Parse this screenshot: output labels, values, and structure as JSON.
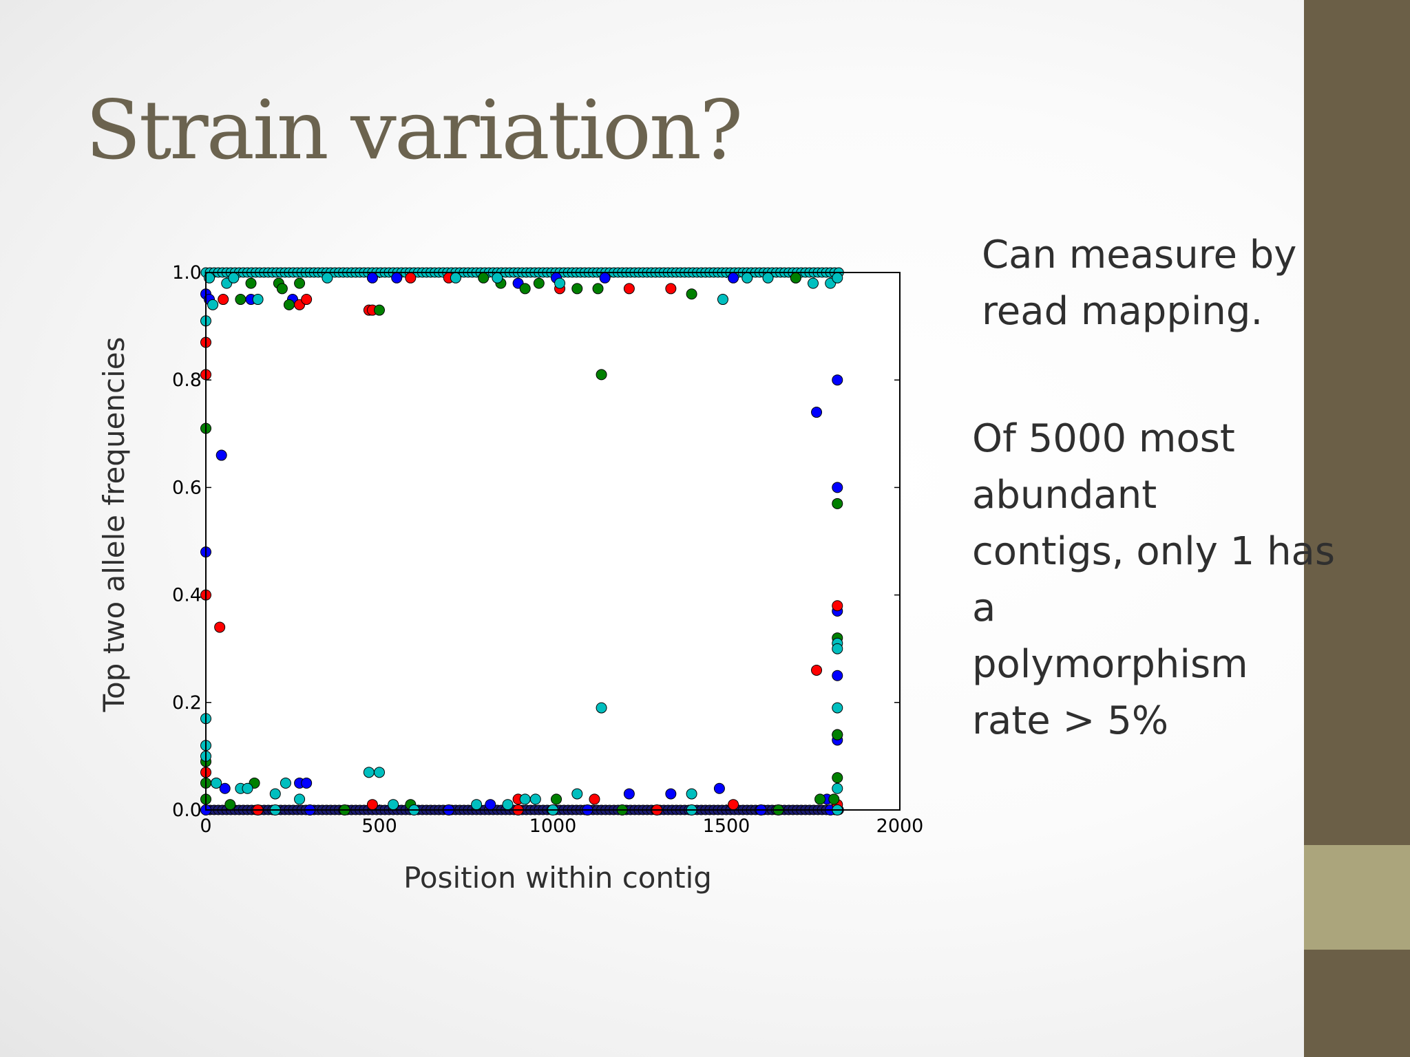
{
  "slide": {
    "title": "Strain variation?",
    "bullet_1": [
      "Can measure by",
      "read mapping."
    ],
    "bullet_2": [
      "Of 5000 most",
      "abundant",
      "contigs, only 1 has",
      "a",
      "polymorphism",
      "rate > 5%"
    ],
    "colors": {
      "title": "#6b634f",
      "sidebar_dark": "#6b5f47",
      "sidebar_light": "#aba57c",
      "text": "#2f2f2f"
    }
  },
  "chart_data": {
    "type": "scatter",
    "xlabel": "Position within contig",
    "ylabel": "Top two allele frequencies",
    "xlim": [
      0,
      2000
    ],
    "ylim": [
      0,
      1.0
    ],
    "x_ticks": [
      0,
      500,
      1000,
      1500,
      2000
    ],
    "x_tick_labels": [
      "0",
      "500",
      "1000",
      "1500",
      "2000"
    ],
    "y_ticks": [
      0.0,
      0.2,
      0.4,
      0.6,
      0.8,
      1.0
    ],
    "y_tick_labels": [
      "0.0",
      "0.2",
      "0.4",
      "0.6",
      "0.8",
      "1.0"
    ],
    "grid": false,
    "series": [
      {
        "color": "#0000ff",
        "points": [
          [
            0,
            0.96
          ],
          [
            0,
            0.48
          ],
          [
            10,
            0.95
          ],
          [
            45,
            0.66
          ],
          [
            55,
            0.04
          ],
          [
            130,
            0.95
          ],
          [
            250,
            0.95
          ],
          [
            270,
            0.05
          ],
          [
            290,
            0.05
          ],
          [
            480,
            0.99
          ],
          [
            550,
            0.99
          ],
          [
            820,
            0.01
          ],
          [
            900,
            0.98
          ],
          [
            1010,
            0.99
          ],
          [
            1150,
            0.99
          ],
          [
            1220,
            0.03
          ],
          [
            1340,
            0.03
          ],
          [
            1480,
            0.04
          ],
          [
            1520,
            0.99
          ],
          [
            1760,
            0.74
          ],
          [
            1790,
            0.02
          ],
          [
            1820,
            0.8
          ],
          [
            1820,
            0.6
          ],
          [
            1820,
            0.37
          ],
          [
            1820,
            0.25
          ],
          [
            1820,
            0.13
          ],
          [
            0,
            0.0
          ],
          [
            300,
            0.0
          ],
          [
            700,
            0.0
          ],
          [
            1100,
            0.0
          ],
          [
            1600,
            0.0
          ],
          [
            1800,
            0.0
          ]
        ]
      },
      {
        "color": "#ff0000",
        "points": [
          [
            0,
            0.87
          ],
          [
            0,
            0.81
          ],
          [
            0,
            0.4
          ],
          [
            0,
            0.07
          ],
          [
            50,
            0.95
          ],
          [
            40,
            0.34
          ],
          [
            270,
            0.94
          ],
          [
            290,
            0.95
          ],
          [
            470,
            0.93
          ],
          [
            480,
            0.93
          ],
          [
            480,
            0.01
          ],
          [
            590,
            0.99
          ],
          [
            700,
            0.99
          ],
          [
            900,
            0.02
          ],
          [
            1020,
            0.97
          ],
          [
            1120,
            0.02
          ],
          [
            1220,
            0.97
          ],
          [
            1340,
            0.97
          ],
          [
            1520,
            0.01
          ],
          [
            1700,
            0.99
          ],
          [
            1760,
            0.26
          ],
          [
            1820,
            0.38
          ],
          [
            1820,
            0.14
          ],
          [
            1820,
            0.01
          ],
          [
            150,
            0.0
          ],
          [
            900,
            0.0
          ],
          [
            1300,
            0.0
          ]
        ]
      },
      {
        "color": "#008000",
        "points": [
          [
            0,
            0.71
          ],
          [
            0,
            0.09
          ],
          [
            0,
            0.05
          ],
          [
            0,
            0.02
          ],
          [
            30,
            0.05
          ],
          [
            70,
            0.01
          ],
          [
            100,
            0.95
          ],
          [
            130,
            0.98
          ],
          [
            140,
            0.05
          ],
          [
            210,
            0.98
          ],
          [
            220,
            0.97
          ],
          [
            240,
            0.94
          ],
          [
            270,
            0.98
          ],
          [
            500,
            0.93
          ],
          [
            590,
            0.01
          ],
          [
            800,
            0.99
          ],
          [
            850,
            0.98
          ],
          [
            920,
            0.97
          ],
          [
            960,
            0.98
          ],
          [
            1010,
            0.02
          ],
          [
            1070,
            0.97
          ],
          [
            1130,
            0.97
          ],
          [
            1140,
            0.81
          ],
          [
            1400,
            0.96
          ],
          [
            1700,
            0.99
          ],
          [
            1770,
            0.02
          ],
          [
            1810,
            0.02
          ],
          [
            1820,
            0.57
          ],
          [
            1820,
            0.32
          ],
          [
            1820,
            0.14
          ],
          [
            1820,
            0.06
          ],
          [
            400,
            0.0
          ],
          [
            1200,
            0.0
          ],
          [
            1650,
            0.0
          ]
        ]
      },
      {
        "color": "#00bfbf",
        "points": [
          [
            0,
            0.91
          ],
          [
            0,
            0.17
          ],
          [
            0,
            0.12
          ],
          [
            0,
            0.1
          ],
          [
            10,
            0.99
          ],
          [
            20,
            0.94
          ],
          [
            30,
            0.05
          ],
          [
            60,
            0.98
          ],
          [
            80,
            0.99
          ],
          [
            100,
            0.04
          ],
          [
            120,
            0.04
          ],
          [
            150,
            0.95
          ],
          [
            200,
            0.03
          ],
          [
            230,
            0.05
          ],
          [
            270,
            0.02
          ],
          [
            350,
            0.99
          ],
          [
            470,
            0.07
          ],
          [
            500,
            0.07
          ],
          [
            540,
            0.01
          ],
          [
            720,
            0.99
          ],
          [
            780,
            0.01
          ],
          [
            840,
            0.99
          ],
          [
            870,
            0.01
          ],
          [
            920,
            0.02
          ],
          [
            950,
            0.02
          ],
          [
            1020,
            0.98
          ],
          [
            1070,
            0.03
          ],
          [
            1140,
            0.19
          ],
          [
            1400,
            0.03
          ],
          [
            1490,
            0.95
          ],
          [
            1560,
            0.99
          ],
          [
            1620,
            0.99
          ],
          [
            1750,
            0.98
          ],
          [
            1800,
            0.98
          ],
          [
            1820,
            0.99
          ],
          [
            1820,
            0.31
          ],
          [
            1820,
            0.3
          ],
          [
            1820,
            0.19
          ],
          [
            1820,
            0.04
          ],
          [
            200,
            0.0
          ],
          [
            600,
            0.0
          ],
          [
            1000,
            0.0
          ],
          [
            1400,
            0.0
          ],
          [
            1820,
            0.0
          ]
        ]
      }
    ]
  }
}
